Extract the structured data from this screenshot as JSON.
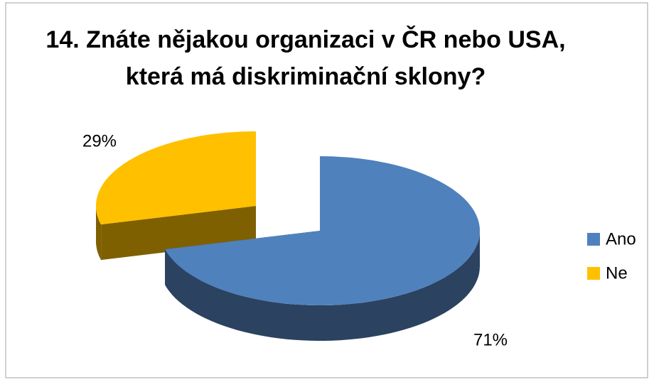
{
  "chart_data": {
    "type": "pie3d",
    "title": "14. Znáte nějakou organizaci v ČR nebo USA, která má diskriminační sklony?",
    "categories": [
      "Ano",
      "Ne"
    ],
    "values": [
      71,
      29
    ],
    "value_labels": [
      "71%",
      "29%"
    ],
    "colors": [
      "#4f81bd",
      "#ffc000"
    ],
    "side_colors": [
      "#2b4260",
      "#7f6000"
    ],
    "legend": "right"
  }
}
